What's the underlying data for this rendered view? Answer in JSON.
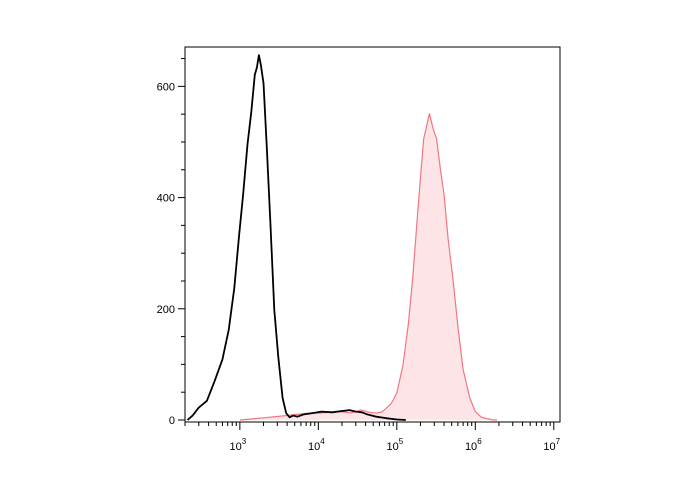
{
  "chart_data": {
    "type": "area",
    "title": "",
    "xlabel": "",
    "ylabel": "",
    "x_scale": "log",
    "xlim": [
      200,
      12000000
    ],
    "ylim": [
      0,
      660
    ],
    "grid": false,
    "y_ticks": [
      0,
      200,
      400,
      600
    ],
    "y_tick_labels": [
      "0",
      "200",
      "400",
      "600"
    ],
    "x_major_ticks": [
      {
        "value": 1000,
        "base": "10",
        "exp": "3"
      },
      {
        "value": 10000,
        "base": "10",
        "exp": "4"
      },
      {
        "value": 100000,
        "base": "10",
        "exp": "5"
      },
      {
        "value": 1000000,
        "base": "10",
        "exp": "6"
      },
      {
        "value": 10000000,
        "base": "10",
        "exp": "7"
      }
    ],
    "series": [
      {
        "color": "#000000",
        "fill": "none",
        "x": [
          215,
          250,
          300,
          380,
          480,
          600,
          720,
          850,
          980,
          1100,
          1250,
          1400,
          1550,
          1650,
          1750,
          1850,
          2000,
          2200,
          2450,
          2750,
          3100,
          3500,
          3900,
          4300,
          4800,
          5400,
          6500,
          8000,
          11000,
          15000,
          20000,
          25000,
          30000,
          36000,
          42000,
          55000,
          75000,
          100000,
          130000
        ],
        "y": [
          0,
          8,
          22,
          35,
          70,
          110,
          160,
          240,
          330,
          410,
          490,
          560,
          615,
          640,
          650,
          645,
          600,
          500,
          350,
          200,
          110,
          40,
          12,
          5,
          8,
          6,
          10,
          12,
          15,
          14,
          16,
          18,
          15,
          14,
          10,
          6,
          3,
          1,
          0
        ]
      },
      {
        "color": "#f07880",
        "fill": "#fde4e6",
        "x": [
          1000,
          2000,
          4000,
          7000,
          10000,
          14000,
          19000,
          26000,
          35000,
          45000,
          55000,
          65000,
          75000,
          85000,
          100000,
          120000,
          140000,
          160000,
          180000,
          200000,
          220000,
          240000,
          260000,
          290000,
          320000,
          360000,
          400000,
          450000,
          520000,
          600000,
          700000,
          850000,
          1000000,
          1200000,
          1450000,
          1700000,
          1900000
        ],
        "y": [
          0,
          4,
          8,
          12,
          12,
          14,
          15,
          13,
          18,
          14,
          12,
          15,
          22,
          30,
          48,
          100,
          170,
          260,
          350,
          440,
          500,
          535,
          545,
          530,
          500,
          455,
          400,
          330,
          250,
          170,
          90,
          40,
          15,
          5,
          2,
          0,
          0
        ]
      }
    ]
  }
}
